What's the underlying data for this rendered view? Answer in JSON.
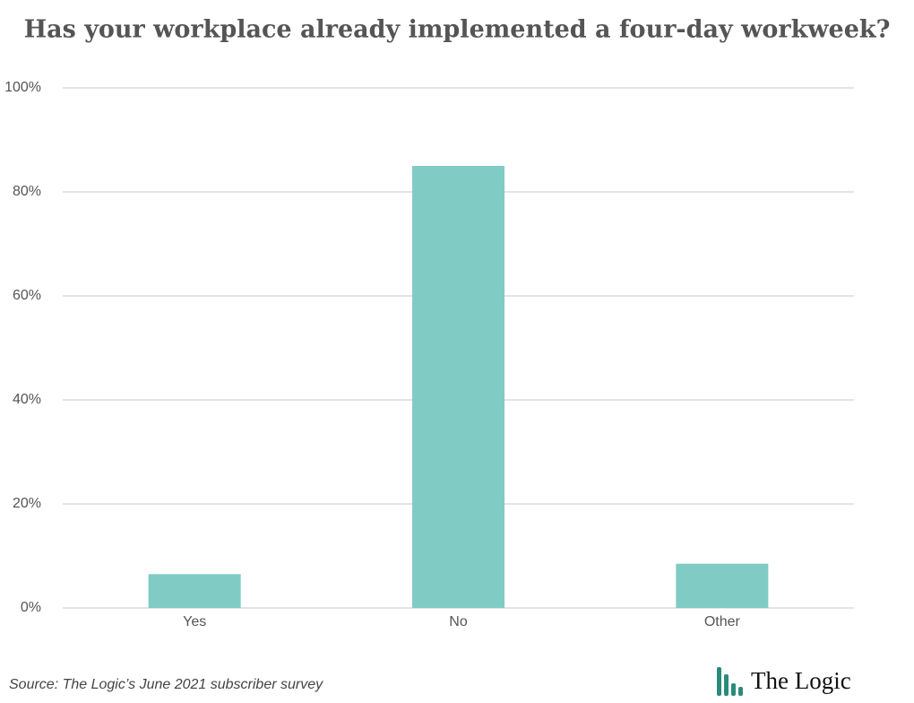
{
  "chart_data": {
    "type": "bar",
    "title": "Has your workplace already implemented a four-day workweek?",
    "categories": [
      "Yes",
      "No",
      "Other"
    ],
    "values": [
      6.5,
      85,
      8.5
    ],
    "color": "#80cbc4",
    "ylim": [
      0,
      100
    ],
    "yticks": [
      {
        "value": 0,
        "label": "0%"
      },
      {
        "value": 20,
        "label": "20%"
      },
      {
        "value": 40,
        "label": "40%"
      },
      {
        "value": 60,
        "label": "60%"
      },
      {
        "value": 80,
        "label": "80%"
      },
      {
        "value": 100,
        "label": "100%"
      }
    ],
    "grid": true,
    "source": "Source: The Logic’s June 2021 subscriber survey",
    "brand": "The Logic"
  }
}
